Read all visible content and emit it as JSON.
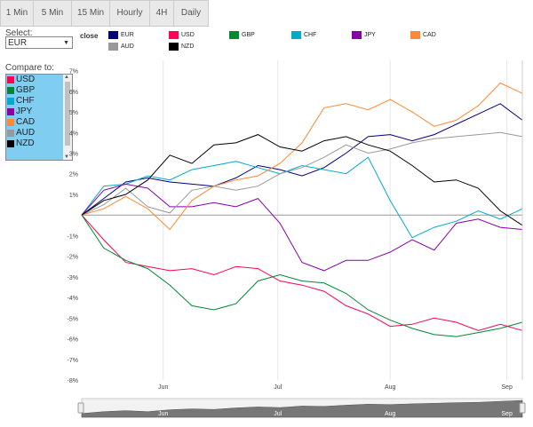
{
  "tabs": [
    "1 Min",
    "5 Min",
    "15 Min",
    "Hourly",
    "4H",
    "Daily"
  ],
  "select": {
    "label": "Select:",
    "value": "EUR"
  },
  "compare": {
    "label": "Compare to:",
    "items": [
      {
        "label": "USD",
        "color": "#ff0055"
      },
      {
        "label": "GBP",
        "color": "#008833"
      },
      {
        "label": "CHF",
        "color": "#00aacc"
      },
      {
        "label": "JPY",
        "color": "#8800aa"
      },
      {
        "label": "CAD",
        "color": "#ff8833"
      },
      {
        "label": "AUD",
        "color": "#999999"
      },
      {
        "label": "NZD",
        "color": "#000000"
      }
    ]
  },
  "legend": {
    "title": "close",
    "items": [
      {
        "label": "EUR",
        "color": "#000080"
      },
      {
        "label": "USD",
        "color": "#ff0055"
      },
      {
        "label": "GBP",
        "color": "#008833"
      },
      {
        "label": "CHF",
        "color": "#00aacc"
      },
      {
        "label": "JPY",
        "color": "#8800aa"
      },
      {
        "label": "CAD",
        "color": "#ff8833"
      },
      {
        "label": "AUD",
        "color": "#999999"
      },
      {
        "label": "NZD",
        "color": "#000000"
      }
    ]
  },
  "chart_data": {
    "type": "line",
    "ylim": [
      -8,
      7.5
    ],
    "yticks": [
      -8,
      -7,
      -6,
      -5,
      -4,
      -3,
      -2,
      -1,
      0,
      1,
      2,
      3,
      4,
      5,
      6,
      7
    ],
    "ytick_labels": [
      "-8%",
      "-7%",
      "-6%",
      "-5%",
      "-4%",
      "-3%",
      "-2%",
      "-1%",
      "",
      "1%",
      "2%",
      "3%",
      "4%",
      "5%",
      "6%",
      "7%"
    ],
    "x_labels": [
      "Jun",
      "Jul",
      "Aug",
      "Sep"
    ],
    "navigator_labels": [
      "Jun",
      "Jul",
      "Aug",
      "Sep"
    ],
    "x": [
      0,
      0.05,
      0.1,
      0.15,
      0.2,
      0.25,
      0.3,
      0.35,
      0.4,
      0.45,
      0.5,
      0.55,
      0.6,
      0.65,
      0.7,
      0.75,
      0.8,
      0.85,
      0.9,
      0.95,
      1.0
    ],
    "series": [
      {
        "name": "EUR",
        "color": "#000080",
        "values": [
          0,
          0.8,
          1.6,
          1.8,
          1.6,
          1.5,
          1.4,
          1.8,
          2.4,
          2.2,
          1.9,
          2.3,
          3.0,
          3.8,
          3.9,
          3.6,
          3.9,
          4.4,
          4.9,
          5.4,
          4.6
        ]
      },
      {
        "name": "USD",
        "color": "#ff0055",
        "values": [
          0,
          -1.2,
          -2.3,
          -2.5,
          -2.7,
          -2.6,
          -2.9,
          -2.5,
          -2.6,
          -3.2,
          -3.4,
          -3.7,
          -4.4,
          -4.8,
          -5.4,
          -5.3,
          -5.0,
          -5.2,
          -5.6,
          -5.3,
          -5.6
        ]
      },
      {
        "name": "GBP",
        "color": "#008833",
        "values": [
          0,
          -1.6,
          -2.2,
          -2.6,
          -3.4,
          -4.4,
          -4.6,
          -4.3,
          -3.2,
          -2.9,
          -3.2,
          -3.3,
          -3.8,
          -4.6,
          -5.1,
          -5.5,
          -5.8,
          -5.9,
          -5.7,
          -5.5,
          -5.2
        ]
      },
      {
        "name": "CHF",
        "color": "#00aacc",
        "values": [
          0,
          1.4,
          1.5,
          1.9,
          1.7,
          2.2,
          2.4,
          2.6,
          2.3,
          2.0,
          2.4,
          2.2,
          2.0,
          2.8,
          0.7,
          -1.1,
          -0.6,
          -0.3,
          0.2,
          -0.2,
          0.3
        ]
      },
      {
        "name": "JPY",
        "color": "#8800aa",
        "values": [
          0,
          1.2,
          1.5,
          1.3,
          0.4,
          0.4,
          0.6,
          0.4,
          0.8,
          -0.4,
          -2.3,
          -2.7,
          -2.2,
          -2.2,
          -1.8,
          -1.2,
          -1.7,
          -0.4,
          -0.2,
          -0.6,
          -0.7
        ]
      },
      {
        "name": "CAD",
        "color": "#ff8833",
        "values": [
          0,
          0.3,
          0.9,
          0.3,
          -0.7,
          0.7,
          1.4,
          1.7,
          1.9,
          2.5,
          3.5,
          5.2,
          5.4,
          5.1,
          5.6,
          5.0,
          4.3,
          4.6,
          5.3,
          6.4,
          5.9
        ]
      },
      {
        "name": "AUD",
        "color": "#999999",
        "values": [
          0,
          0.5,
          1.3,
          0.4,
          0.1,
          1.2,
          1.4,
          1.2,
          1.4,
          2.0,
          2.3,
          2.8,
          3.4,
          3.0,
          3.2,
          3.5,
          3.7,
          3.8,
          3.9,
          4.0,
          3.8
        ]
      },
      {
        "name": "NZD",
        "color": "#000000",
        "values": [
          0,
          0.7,
          1.0,
          1.7,
          2.9,
          2.5,
          3.4,
          3.5,
          3.9,
          3.3,
          3.1,
          3.6,
          3.8,
          3.4,
          3.1,
          2.4,
          1.6,
          1.7,
          1.3,
          0.2,
          -0.5
        ]
      }
    ],
    "navigator_values": [
      0.2,
      0.3,
      0.35,
      0.3,
      0.4,
      0.45,
      0.42,
      0.5,
      0.55,
      0.52,
      0.6,
      0.58,
      0.65,
      0.7,
      0.68,
      0.72,
      0.75,
      0.78,
      0.8,
      0.85,
      0.9
    ]
  }
}
